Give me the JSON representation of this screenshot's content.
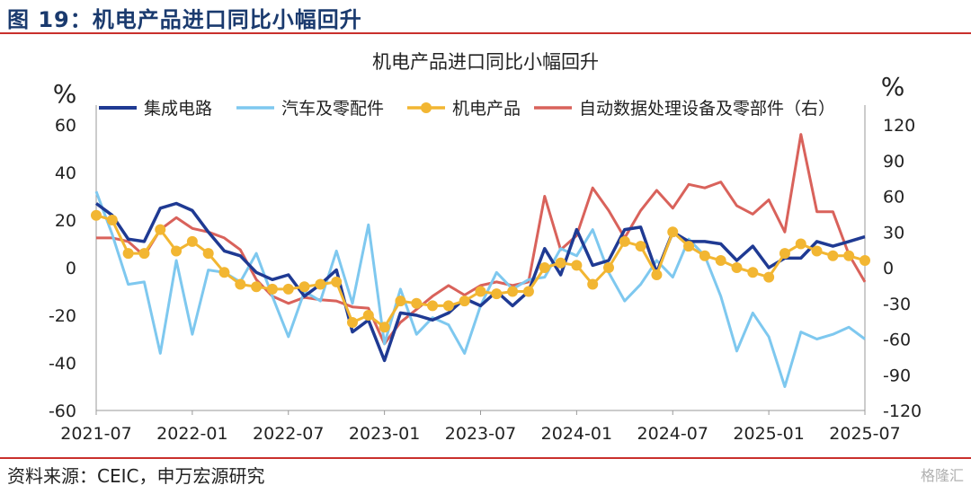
{
  "figure_title": "图 19：机电产品进口同比小幅回升",
  "source": "资料来源：CEIC，申万宏源研究",
  "watermark": "格隆汇",
  "chart_data": {
    "type": "line",
    "title": "机电产品进口同比小幅回升",
    "ylabel_left": "%",
    "ylabel_right": "%",
    "ylim_left": [
      -60,
      60
    ],
    "yticks_left": [
      60,
      40,
      20,
      0,
      -20,
      -40,
      -60
    ],
    "ylim_right": [
      -120,
      120
    ],
    "yticks_right": [
      120,
      90,
      60,
      30,
      0,
      -30,
      -60,
      -90,
      -120
    ],
    "x_ticks": [
      "2021-07",
      "2022-01",
      "2022-07",
      "2023-01",
      "2023-07",
      "2024-01",
      "2024-07",
      "2025-01",
      "2025-07"
    ],
    "x": [
      "2021-07",
      "2021-08",
      "2021-09",
      "2021-10",
      "2021-11",
      "2021-12",
      "2022-01",
      "2022-02",
      "2022-03",
      "2022-04",
      "2022-05",
      "2022-06",
      "2022-07",
      "2022-08",
      "2022-09",
      "2022-10",
      "2022-11",
      "2022-12",
      "2023-01",
      "2023-02",
      "2023-03",
      "2023-04",
      "2023-05",
      "2023-06",
      "2023-07",
      "2023-08",
      "2023-09",
      "2023-10",
      "2023-11",
      "2023-12",
      "2024-01",
      "2024-02",
      "2024-03",
      "2024-04",
      "2024-05",
      "2024-06",
      "2024-07",
      "2024-08",
      "2024-09",
      "2024-10",
      "2024-11",
      "2024-12",
      "2025-01",
      "2025-02",
      "2025-03",
      "2025-04",
      "2025-05",
      "2025-06",
      "2025-07"
    ],
    "grid": false,
    "legend_position": "top",
    "series": [
      {
        "name": "集成电路",
        "axis": "left",
        "color": "#1f3a93",
        "marker": false,
        "values": [
          27,
          22,
          12,
          11,
          25,
          27,
          24,
          15,
          7,
          5,
          -2,
          -5,
          -3,
          -12,
          -7,
          -1,
          -27,
          -22,
          -39,
          -19,
          -20,
          -22,
          -19,
          -13,
          -16,
          -10,
          -16,
          -10,
          8,
          -3,
          16,
          1,
          3,
          16,
          17,
          -2,
          15,
          11,
          11,
          10,
          3,
          9,
          0,
          4,
          4,
          11,
          9,
          11,
          13
        ]
      },
      {
        "name": "汽车及零配件",
        "axis": "left",
        "color": "#7ec8ef",
        "marker": false,
        "values": [
          32,
          14,
          -7,
          -6,
          -36,
          3,
          -28,
          -1,
          -2,
          -6,
          6,
          -12,
          -29,
          -10,
          -14,
          7,
          -15,
          18,
          -32,
          -9,
          -28,
          -21,
          -24,
          -36,
          -16,
          -2,
          -9,
          -5,
          -4,
          8,
          5,
          16,
          -2,
          -14,
          -7,
          3,
          -4,
          12,
          5,
          -12,
          -35,
          -19,
          -29,
          -50,
          -27,
          -30,
          -28,
          -25,
          -30
        ]
      },
      {
        "name": "机电产品",
        "axis": "left",
        "color": "#f2b632",
        "marker": true,
        "values": [
          22,
          20,
          6,
          6,
          16,
          7,
          11,
          6,
          -2,
          -7,
          -8,
          -9,
          -9,
          -8,
          -7,
          -6,
          -23,
          -20,
          -25,
          -14,
          -15,
          -16,
          -16,
          -14,
          -10,
          -11,
          -10,
          -10,
          0,
          2,
          1,
          -7,
          0,
          11,
          9,
          -3,
          15,
          9,
          5,
          3,
          0,
          -2,
          -4,
          6,
          10,
          7,
          5,
          5,
          3
        ]
      },
      {
        "name": "自动数据处理设备及零部件（右）",
        "axis": "right",
        "color": "#d9625b",
        "marker": false,
        "values": [
          25,
          25,
          22,
          10,
          32,
          42,
          33,
          30,
          25,
          15,
          -10,
          -24,
          -30,
          -25,
          -27,
          -28,
          -33,
          -34,
          -64,
          -46,
          -35,
          -24,
          -15,
          -23,
          -15,
          -12,
          -15,
          -12,
          60,
          15,
          27,
          67,
          48,
          25,
          48,
          65,
          50,
          70,
          67,
          72,
          52,
          45,
          57,
          30,
          112,
          47,
          47,
          11,
          -12
        ]
      }
    ]
  }
}
